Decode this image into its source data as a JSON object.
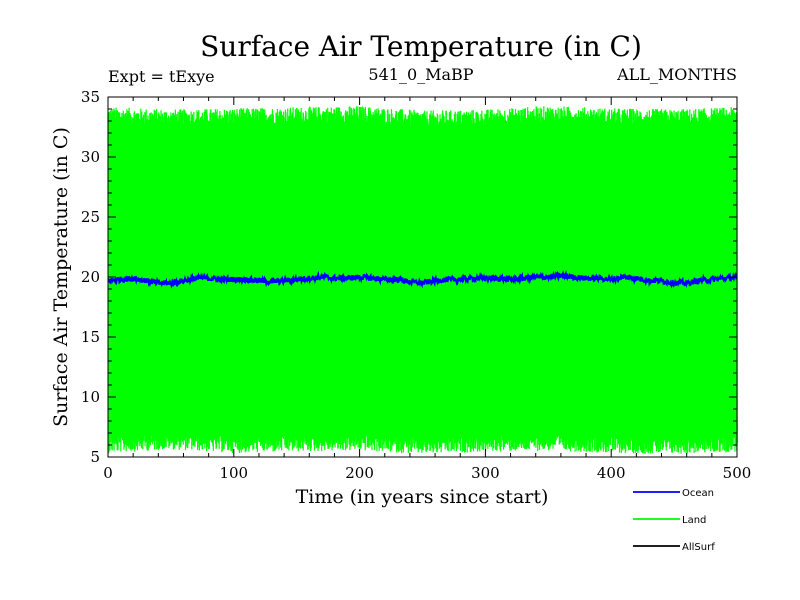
{
  "chart_data": {
    "type": "line",
    "title": "Surface Air Temperature (in C)",
    "subtitle_left": "Expt = tExye",
    "subtitle_center": "541_0_MaBP",
    "subtitle_right": "ALL_MONTHS",
    "xlabel": "Time (in years since start)",
    "ylabel": "Surface Air Temperature (in C)",
    "xlim": [
      0,
      500
    ],
    "ylim": [
      5,
      35
    ],
    "xticks": [
      0,
      100,
      200,
      300,
      400,
      500
    ],
    "yticks": [
      5,
      10,
      15,
      20,
      25,
      30,
      35
    ],
    "grid": false,
    "legend_position": "bottom-right",
    "series": [
      {
        "name": "Ocean",
        "color": "#0000ff",
        "x": [
          0,
          10,
          20,
          30,
          40,
          50,
          60,
          70,
          80,
          90,
          100,
          110,
          120,
          130,
          140,
          150,
          160,
          170,
          180,
          190,
          200,
          210,
          220,
          230,
          240,
          250,
          260,
          270,
          280,
          290,
          300,
          310,
          320,
          330,
          340,
          350,
          360,
          370,
          380,
          390,
          400,
          410,
          420,
          430,
          440,
          450,
          460,
          470,
          480,
          490,
          500
        ],
        "y": [
          19.7,
          19.8,
          19.9,
          19.7,
          19.5,
          19.5,
          19.7,
          19.9,
          19.9,
          19.8,
          19.8,
          19.8,
          19.7,
          19.6,
          19.7,
          19.8,
          19.9,
          20.0,
          19.9,
          19.9,
          20.0,
          19.9,
          19.8,
          19.8,
          19.6,
          19.5,
          19.7,
          19.8,
          19.8,
          19.9,
          19.9,
          19.9,
          19.8,
          19.9,
          20.0,
          20.0,
          20.1,
          20.0,
          19.9,
          19.9,
          19.8,
          20.0,
          19.9,
          19.7,
          19.7,
          19.5,
          19.5,
          19.7,
          19.8,
          19.9,
          20.0
        ]
      },
      {
        "name": "Land",
        "color": "#00ff00",
        "x_range": [
          0,
          500
        ],
        "upper_envelope": {
          "x": [
            0,
            50,
            100,
            150,
            200,
            250,
            300,
            350,
            400,
            450,
            500
          ],
          "y": [
            33.2,
            33.0,
            33.1,
            33.2,
            33.3,
            32.9,
            33.0,
            33.3,
            33.1,
            33.0,
            33.2
          ]
        },
        "lower_envelope": {
          "x": [
            0,
            50,
            100,
            150,
            200,
            250,
            300,
            350,
            400,
            450,
            500
          ],
          "y": [
            6.3,
            6.6,
            6.3,
            6.4,
            6.5,
            6.2,
            6.4,
            6.5,
            6.3,
            6.2,
            6.4
          ]
        },
        "max": 34.5,
        "min": 5.1
      },
      {
        "name": "AllSurf",
        "color": "#000000",
        "x": [],
        "y": []
      }
    ]
  }
}
